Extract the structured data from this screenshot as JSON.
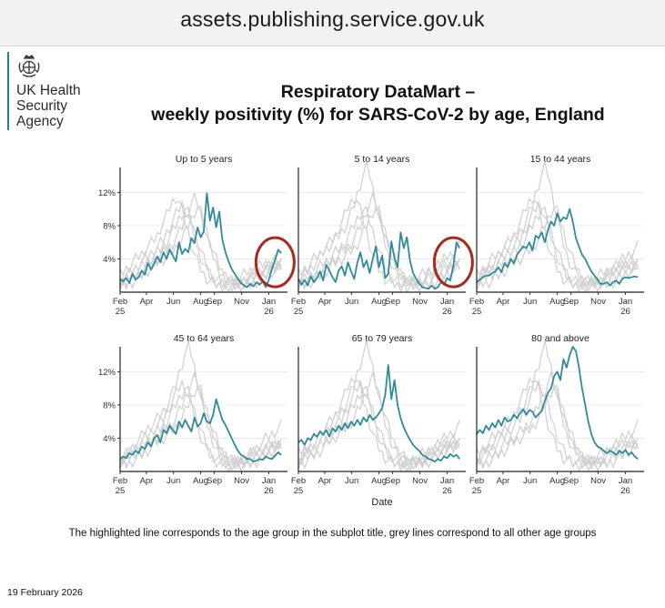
{
  "browser": {
    "url": "assets.publishing.service.gov.uk"
  },
  "logo": {
    "org_lines": [
      "UK Health",
      "Security",
      "Agency"
    ]
  },
  "slide": {
    "title_line1": "Respiratory DataMart –",
    "title_line2": "weekly positivity (%) for SARS-CoV-2 by age, England",
    "caption": "The highlighted line corresponds to the age group in the subplot title, grey lines correspond to all other age groups",
    "date": "19 February 2026"
  },
  "chart_data": {
    "type": "line",
    "xlabel": "Date",
    "x_ticks": [
      {
        "label": "Feb",
        "sub": "25",
        "week": 0
      },
      {
        "label": "Apr",
        "sub": "",
        "week": 8.5
      },
      {
        "label": "Jun",
        "sub": "",
        "week": 17.2
      },
      {
        "label": "Aug",
        "sub": "",
        "week": 26
      },
      {
        "label": "Sep",
        "sub": "",
        "week": 30.4
      },
      {
        "label": "Nov",
        "sub": "",
        "week": 39.2
      },
      {
        "label": "Jan",
        "sub": "26",
        "week": 48
      }
    ],
    "x_range": [
      0,
      54
    ],
    "ylim": [
      0,
      15
    ],
    "y_ticks": [
      4,
      8,
      12
    ],
    "y_tick_labels": [
      "4%",
      "8%",
      "12%"
    ],
    "highlight_color": "#2e8b9a",
    "grey_color": "#cfcfcf",
    "annotation_color": "#a82b1e",
    "panels": [
      {
        "title": "Up to 5 years",
        "circled": true,
        "values": [
          1.6,
          1.3,
          1.7,
          1.1,
          2.2,
          1.5,
          1.8,
          2.6,
          2.1,
          3.5,
          2.7,
          3.4,
          4.3,
          3.6,
          4.8,
          4,
          5.1,
          4.4,
          3.7,
          6,
          4.6,
          5.2,
          4.8,
          6.5,
          5.9,
          7.8,
          6.6,
          7.3,
          11.9,
          8.6,
          10.2,
          7.8,
          9.7,
          6.3,
          4.8,
          3.7,
          2.8,
          2.2,
          1.6,
          1.1,
          0.8,
          0.6,
          1,
          0.7,
          1.2,
          0.9,
          1.3,
          0.6,
          1.5,
          2.8,
          3.9,
          5.1,
          4.7
        ]
      },
      {
        "title": "5 to 14 years",
        "circled": true,
        "values": [
          1.6,
          0.9,
          1.5,
          0.8,
          1.9,
          1.2,
          1.7,
          2.5,
          1.4,
          3.3,
          2.6,
          1.8,
          1.2,
          2.6,
          3.1,
          2,
          3.6,
          2.5,
          1.6,
          3.5,
          4.8,
          3,
          3.8,
          2.3,
          4,
          5.5,
          3,
          4.4,
          1.7,
          2.2,
          6.1,
          4.1,
          3,
          7.2,
          5.3,
          6.6,
          3.8,
          2.3,
          1.6,
          1,
          0.6,
          0.5,
          0.4,
          0.8,
          0.4,
          0.6,
          1.2,
          0.9,
          1.7,
          1.4,
          3.2,
          6,
          5.3
        ]
      },
      {
        "title": "15 to 44 years",
        "circled": false,
        "values": [
          1.2,
          1.5,
          1.8,
          2,
          2,
          2.3,
          2.5,
          3,
          2.4,
          3.5,
          3,
          4,
          3.5,
          4.5,
          5,
          5.5,
          5.3,
          6,
          5,
          6.8,
          6.5,
          7.2,
          6,
          7.5,
          8.5,
          8,
          9.5,
          8.5,
          9,
          8.8,
          10,
          8.5,
          6.5,
          5.5,
          4.5,
          4,
          3.2,
          2.5,
          2,
          1.5,
          1,
          1,
          1.2,
          0.8,
          1.2,
          1.4,
          1,
          1.6,
          1.8,
          1.7,
          1.8,
          1.9,
          1.8
        ]
      },
      {
        "title": "45 to 64 years",
        "circled": false,
        "values": [
          1.5,
          1.8,
          1.6,
          2.2,
          2,
          2.5,
          2.2,
          3,
          2.7,
          3.5,
          3,
          4,
          4.4,
          3.5,
          5,
          4.6,
          5.5,
          5,
          4.5,
          6,
          5.3,
          6.2,
          5.5,
          4.8,
          6.5,
          5.4,
          5.8,
          7,
          6,
          5.8,
          6.8,
          8.7,
          7.4,
          6.2,
          5.6,
          4.8,
          4,
          3.2,
          2.5,
          2,
          1.8,
          1.5,
          1.5,
          1.2,
          1.3,
          1.5,
          1.4,
          1.8,
          1.6,
          1.5,
          1.9,
          2.3,
          2
        ]
      },
      {
        "title": "65 to 79 years",
        "circled": false,
        "values": [
          3.5,
          3.8,
          3.2,
          4,
          3.8,
          4.5,
          4.2,
          4.8,
          4.4,
          5,
          4.2,
          5.2,
          4.8,
          5.5,
          5,
          5.8,
          5.2,
          6,
          5.5,
          6.2,
          5.6,
          6.5,
          6,
          6.8,
          6.2,
          6.5,
          7,
          7.6,
          9.2,
          12.8,
          8.7,
          11,
          8,
          6.4,
          5.3,
          4.5,
          3.8,
          3.2,
          2.8,
          2.5,
          2,
          1.8,
          1.5,
          1.4,
          1.2,
          1.5,
          1.3,
          1.8,
          1.6,
          2.1,
          1.8,
          2,
          1.5
        ]
      },
      {
        "title": "80 and above",
        "circled": false,
        "values": [
          4.5,
          5,
          4.6,
          5.5,
          5,
          5.8,
          5.3,
          6.2,
          5.5,
          6.5,
          6,
          6.2,
          6.8,
          6.4,
          7,
          7.5,
          6.8,
          7.4,
          7.2,
          6.5,
          6.9,
          7.3,
          8.5,
          9.5,
          10,
          11.5,
          12,
          11,
          13.5,
          12.5,
          14,
          15,
          14.5,
          12.5,
          10,
          8,
          6,
          4.5,
          3.5,
          3,
          2.8,
          2.5,
          2.2,
          2.5,
          2.3,
          2,
          2.5,
          2.2,
          2.6,
          2,
          2.3,
          1.8,
          1.5
        ]
      }
    ],
    "grey_series": [
      [
        1.5,
        1.8,
        2.1,
        2.5,
        2.9,
        3.3,
        3.8,
        4.2,
        4.8,
        5.2,
        5.6,
        5.9,
        6.3,
        6.8,
        7.3,
        7.8,
        8.6,
        9.5,
        10.5,
        11.8,
        13,
        14.2,
        15,
        14.2,
        12.5,
        10.8,
        9,
        7.2,
        5.8,
        4.5,
        3.6,
        2.8,
        2.3,
        1.9,
        1.6,
        1.4,
        1.2,
        1.2,
        1.3,
        1.4,
        1.6,
        1.8,
        2.1,
        2.4,
        2.8,
        3.2,
        3.6,
        3.9,
        4.2,
        4.5,
        4.8,
        5.2,
        5.5
      ],
      [
        1,
        1.3,
        1.5,
        1.9,
        2.3,
        2.6,
        3,
        3.4,
        3.9,
        4.3,
        4.7,
        5,
        5.5,
        6,
        6.4,
        6.9,
        7.4,
        8.4,
        9.2,
        10,
        11,
        11.8,
        12.4,
        11.9,
        10.6,
        9.2,
        7.8,
        6.3,
        5,
        3.9,
        3,
        2.3,
        1.8,
        1.5,
        1.2,
        1,
        0.9,
        0.9,
        1,
        1.1,
        1.3,
        1.5,
        1.7,
        2,
        2.3,
        2.6,
        2.8,
        3,
        3.2,
        3.4,
        3.6,
        3.8,
        4
      ]
    ]
  }
}
